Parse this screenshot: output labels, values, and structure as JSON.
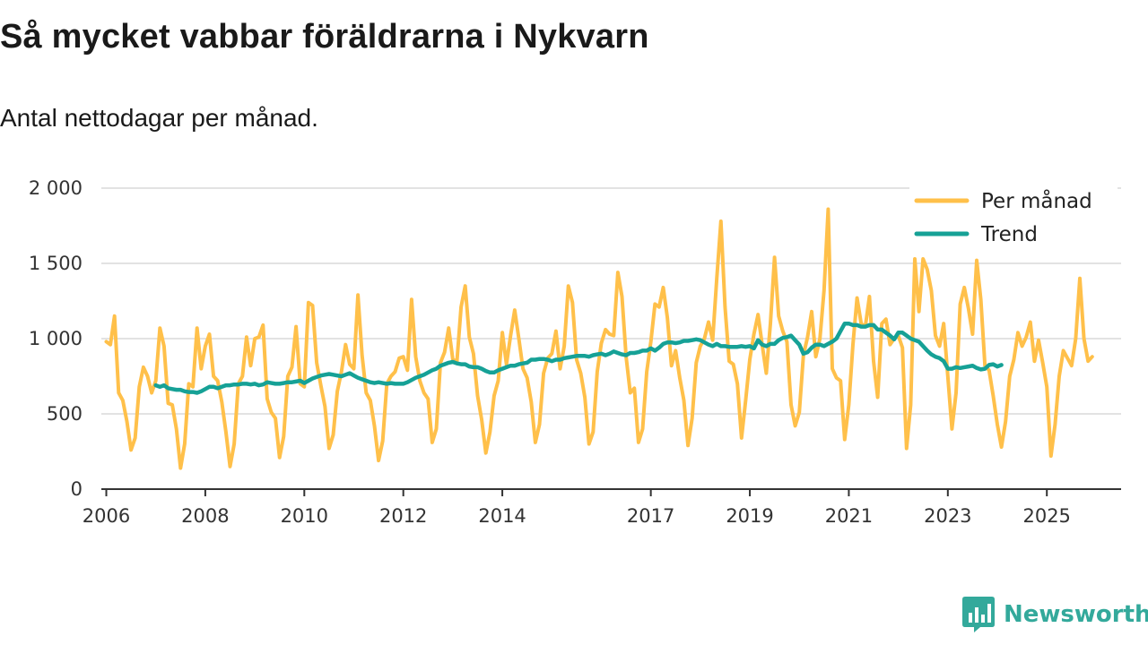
{
  "colors": {
    "monthly": "#ffc04a",
    "trend": "#16a196",
    "brand": "#33a99b",
    "grid": "#d9d9d9"
  },
  "chart_data": {
    "type": "line",
    "title": "Så mycket vabbar föräldrarna i Nykvarn",
    "subtitle": "Antal nettodagar per månad.",
    "xlabel": "",
    "ylabel": "",
    "ylim": [
      0,
      2000
    ],
    "yticks": [
      0,
      500,
      1000,
      1500,
      2000
    ],
    "ytick_labels": [
      "0",
      "500",
      "1 000",
      "1 500",
      "2 000"
    ],
    "xlim": [
      2005.9,
      2026.5
    ],
    "xticks": [
      2006,
      2008,
      2010,
      2012,
      2014,
      2017,
      2019,
      2021,
      2023,
      2025
    ],
    "xtick_labels": [
      "2006",
      "2008",
      "2010",
      "2012",
      "2014",
      "2017",
      "2019",
      "2021",
      "2023",
      "2025"
    ],
    "legend_position": "top-right",
    "series": [
      {
        "name": "Per månad",
        "start": 2006.0,
        "step_months": 1,
        "values": [
          980,
          960,
          1150,
          640,
          590,
          450,
          260,
          340,
          680,
          810,
          750,
          640,
          720,
          1070,
          950,
          570,
          560,
          400,
          140,
          300,
          700,
          680,
          1070,
          800,
          950,
          1030,
          750,
          720,
          580,
          380,
          150,
          300,
          700,
          750,
          1010,
          820,
          1000,
          1010,
          1090,
          600,
          510,
          470,
          210,
          350,
          750,
          810,
          1080,
          700,
          680,
          1240,
          1220,
          840,
          690,
          550,
          270,
          360,
          650,
          780,
          960,
          830,
          800,
          1290,
          890,
          640,
          590,
          420,
          190,
          320,
          700,
          750,
          780,
          870,
          880,
          790,
          1260,
          880,
          720,
          640,
          600,
          310,
          400,
          840,
          910,
          1070,
          860,
          850,
          1210,
          1350,
          1010,
          900,
          620,
          460,
          240,
          380,
          620,
          720,
          1040,
          830,
          1020,
          1190,
          1000,
          800,
          740,
          580,
          310,
          430,
          770,
          870,
          900,
          1050,
          800,
          950,
          1350,
          1240,
          860,
          770,
          610,
          300,
          380,
          780,
          970,
          1060,
          1030,
          1020,
          1440,
          1280,
          880,
          640,
          670,
          310,
          400,
          780,
          980,
          1230,
          1210,
          1340,
          1140,
          820,
          920,
          740,
          590,
          290,
          470,
          840,
          950,
          1000,
          1110,
          990,
          1400,
          1780,
          1210,
          850,
          830,
          700,
          340,
          590,
          860,
          1030,
          1160,
          960,
          770,
          1100,
          1540,
          1150,
          1050,
          980,
          560,
          420,
          510,
          890,
          1010,
          1180,
          880,
          1000,
          1320,
          1860,
          800,
          740,
          720,
          330,
          560,
          960,
          1270,
          1100,
          1080,
          1280,
          850,
          610,
          1100,
          1130,
          960,
          1000,
          1020,
          940,
          270,
          560,
          1530,
          1180,
          1530,
          1460,
          1320,
          1020,
          950,
          1100,
          750,
          400,
          640,
          1230,
          1340,
          1200,
          1030,
          1520,
          1260,
          820,
          790,
          620,
          430,
          280,
          450,
          750,
          860,
          1040,
          950,
          1010,
          1110,
          850,
          990,
          840,
          680,
          220,
          430,
          750,
          920,
          870,
          820,
          1000,
          1400,
          1000,
          850,
          880
        ]
      },
      {
        "name": "Trend",
        "start": 2007.0,
        "step_months": 1,
        "values": [
          690,
          680,
          690,
          670,
          665,
          660,
          660,
          650,
          645,
          645,
          640,
          650,
          665,
          680,
          680,
          670,
          680,
          690,
          690,
          695,
          695,
          700,
          700,
          695,
          700,
          690,
          695,
          710,
          705,
          700,
          700,
          705,
          710,
          710,
          715,
          720,
          705,
          720,
          735,
          745,
          755,
          760,
          765,
          760,
          755,
          750,
          760,
          770,
          755,
          740,
          730,
          720,
          710,
          705,
          710,
          705,
          700,
          705,
          700,
          700,
          700,
          710,
          725,
          740,
          750,
          760,
          775,
          790,
          800,
          820,
          830,
          840,
          845,
          835,
          830,
          830,
          815,
          810,
          810,
          800,
          785,
          775,
          775,
          790,
          800,
          810,
          820,
          820,
          830,
          835,
          840,
          860,
          860,
          865,
          865,
          860,
          850,
          860,
          860,
          870,
          875,
          880,
          885,
          885,
          885,
          880,
          890,
          895,
          900,
          890,
          900,
          915,
          905,
          895,
          890,
          905,
          905,
          910,
          920,
          920,
          935,
          920,
          940,
          965,
          975,
          975,
          970,
          975,
          985,
          985,
          990,
          995,
          990,
          975,
          960,
          950,
          965,
          950,
          950,
          945,
          945,
          945,
          950,
          945,
          950,
          935,
          990,
          960,
          950,
          965,
          965,
          990,
          1005,
          1010,
          1020,
          990,
          960,
          900,
          910,
          940,
          960,
          960,
          950,
          965,
          980,
          1000,
          1050,
          1100,
          1100,
          1090,
          1090,
          1080,
          1080,
          1090,
          1090,
          1060,
          1060,
          1040,
          1020,
          995,
          1040,
          1040,
          1020,
          1000,
          990,
          980,
          950,
          920,
          895,
          880,
          870,
          850,
          800,
          800,
          810,
          805,
          810,
          815,
          820,
          805,
          795,
          800,
          825,
          830,
          815,
          825
        ]
      }
    ]
  },
  "legend": {
    "monthly_label": "Per månad",
    "trend_label": "Trend"
  },
  "brand": {
    "name": "Newsworthy",
    "icon": "newsworthy-logo-icon"
  }
}
